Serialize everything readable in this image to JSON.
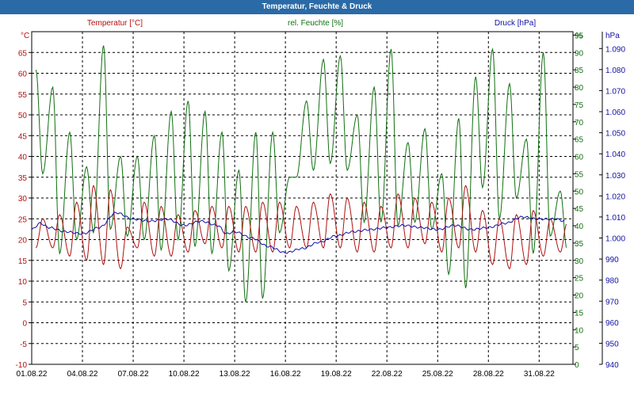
{
  "window": {
    "title": "Temperatur, Feuchte & Druck"
  },
  "colors": {
    "temperature": "#b01010",
    "humidity": "#107010",
    "pressure": "#1010a0",
    "titlebar": "#2a6aa6",
    "grid": "#000000"
  },
  "chart_data": {
    "type": "line",
    "title": "Temperatur, Feuchte & Druck",
    "grid": true,
    "x": {
      "range": [
        "01.08.22",
        "01.09.22"
      ],
      "tick_labels": [
        "01.08.22",
        "04.08.22",
        "07.08.22",
        "10.08.22",
        "13.08.22",
        "16.08.22",
        "19.08.22",
        "22.08.22",
        "25.08.22",
        "28.08.22",
        "31.08.22"
      ],
      "tick_days": [
        0,
        3,
        6,
        9,
        12,
        15,
        18,
        21,
        24,
        27,
        30
      ],
      "day_max": 32
    },
    "axes": {
      "temperature": {
        "label": "Temperatur [°C]",
        "unit": "°C",
        "range": [
          -10,
          70
        ],
        "ticks": [
          -10,
          -5,
          0,
          5,
          10,
          15,
          20,
          25,
          30,
          35,
          40,
          45,
          50,
          55,
          60,
          65
        ]
      },
      "humidity": {
        "label": "rel. Feuchte [%]",
        "unit": "%",
        "range": [
          0,
          96
        ],
        "ticks": [
          0,
          5,
          10,
          15,
          20,
          25,
          30,
          35,
          40,
          45,
          50,
          55,
          60,
          65,
          70,
          75,
          80,
          85,
          90,
          95
        ]
      },
      "pressure": {
        "label": "Druck [hPa]",
        "unit": "hPa",
        "range": [
          940,
          1098
        ],
        "ticks": [
          940,
          950,
          960,
          970,
          980,
          990,
          1000,
          1010,
          1020,
          1030,
          1040,
          1050,
          1060,
          1070,
          1080,
          1090
        ]
      }
    },
    "series": [
      {
        "name": "Temperatur [°C]",
        "axis": "temperature",
        "color": "#b01010",
        "day_min": [
          18,
          18,
          16,
          15,
          14,
          13,
          18,
          16,
          16,
          17,
          19,
          18,
          17,
          17,
          17,
          18,
          18,
          18,
          18,
          17,
          17,
          18,
          18,
          19,
          17,
          18,
          17,
          14,
          13,
          14,
          16,
          17
        ],
        "day_max": [
          25,
          26,
          29,
          33,
          32,
          23,
          29,
          28,
          26,
          27,
          28,
          28,
          28,
          29,
          29,
          28,
          29,
          31,
          30,
          29,
          28,
          31,
          30,
          29,
          30,
          33,
          27,
          25,
          26,
          27,
          25,
          24
        ],
        "min_phase": 0.25,
        "max_phase": 0.65
      },
      {
        "name": "rel. Feuchte [%]",
        "axis": "humidity",
        "color": "#107010",
        "day_min": [
          55,
          32,
          36,
          38,
          39,
          37,
          36,
          33,
          36,
          34,
          32,
          27,
          18,
          19,
          38,
          54,
          56,
          58,
          56,
          41,
          41,
          40,
          41,
          39,
          26,
          22,
          51,
          42,
          48,
          32,
          37,
          33
        ],
        "day_max": [
          85,
          80,
          67,
          57,
          92,
          60,
          60,
          66,
          73,
          76,
          73,
          67,
          56,
          67,
          67,
          54,
          76,
          88,
          89,
          72,
          80,
          91,
          64,
          68,
          55,
          71,
          83,
          91,
          81,
          65,
          90,
          50
        ],
        "min_phase": 0.65,
        "max_phase": 0.25
      },
      {
        "name": "Druck [hPa]",
        "axis": "pressure",
        "color": "#1010a0",
        "points": [
          [
            0,
            1004
          ],
          [
            0.5,
            1007
          ],
          [
            1,
            1005
          ],
          [
            2,
            1003
          ],
          [
            3,
            1002
          ],
          [
            4,
            1005
          ],
          [
            5,
            1012
          ],
          [
            6,
            1009
          ],
          [
            7,
            1008
          ],
          [
            8,
            1009
          ],
          [
            9,
            1006
          ],
          [
            10,
            1008
          ],
          [
            11,
            1006
          ],
          [
            11.5,
            1002
          ],
          [
            12,
            1003
          ],
          [
            13,
            1000
          ],
          [
            14,
            996
          ],
          [
            15,
            993
          ],
          [
            16,
            995
          ],
          [
            17,
            998
          ],
          [
            18,
            1001
          ],
          [
            19,
            1003
          ],
          [
            20,
            1004
          ],
          [
            21,
            1005
          ],
          [
            22,
            1006
          ],
          [
            23,
            1005
          ],
          [
            24,
            1004
          ],
          [
            25,
            1006
          ],
          [
            26,
            1004
          ],
          [
            27,
            1005
          ],
          [
            28,
            1007
          ],
          [
            29,
            1010
          ],
          [
            30,
            1009
          ],
          [
            31,
            1009
          ],
          [
            31.5,
            1008
          ]
        ]
      }
    ]
  }
}
